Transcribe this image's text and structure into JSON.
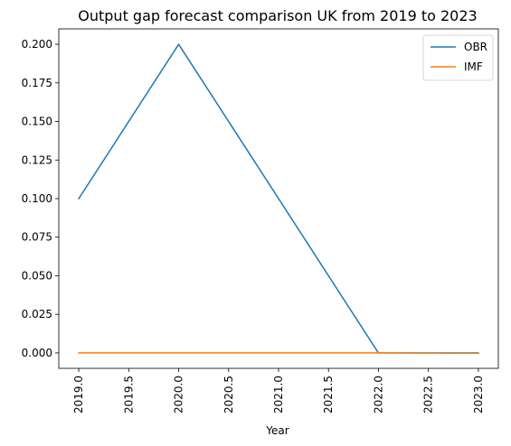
{
  "chart_data": {
    "type": "line",
    "title": "Output gap forecast comparison UK from 2019 to 2023",
    "xlabel": "Year",
    "ylabel": "",
    "x": [
      2019,
      2020,
      2021,
      2022,
      2023
    ],
    "series": [
      {
        "name": "OBR",
        "values": [
          0.1,
          0.2,
          0.1,
          0.0,
          0.0
        ],
        "color": "#1f77b4"
      },
      {
        "name": "IMF",
        "values": [
          0.0,
          0.0,
          0.0,
          0.0,
          -0.0002
        ],
        "color": "#ff7f0e"
      }
    ],
    "xlim": [
      2018.8,
      2023.2
    ],
    "ylim": [
      -0.01,
      0.21
    ],
    "xticks": [
      2019.0,
      2019.5,
      2020.0,
      2020.5,
      2021.0,
      2021.5,
      2022.0,
      2022.5,
      2023.0
    ],
    "xtick_labels": [
      "2019.0",
      "2019.5",
      "2020.0",
      "2020.5",
      "2021.0",
      "2021.5",
      "2022.0",
      "2022.5",
      "2023.0"
    ],
    "yticks": [
      0.0,
      0.025,
      0.05,
      0.075,
      0.1,
      0.125,
      0.15,
      0.175,
      0.2
    ],
    "ytick_labels": [
      "0.000",
      "0.025",
      "0.050",
      "0.075",
      "0.100",
      "0.125",
      "0.150",
      "0.175",
      "0.200"
    ],
    "grid": false,
    "legend_position": "top-right"
  }
}
